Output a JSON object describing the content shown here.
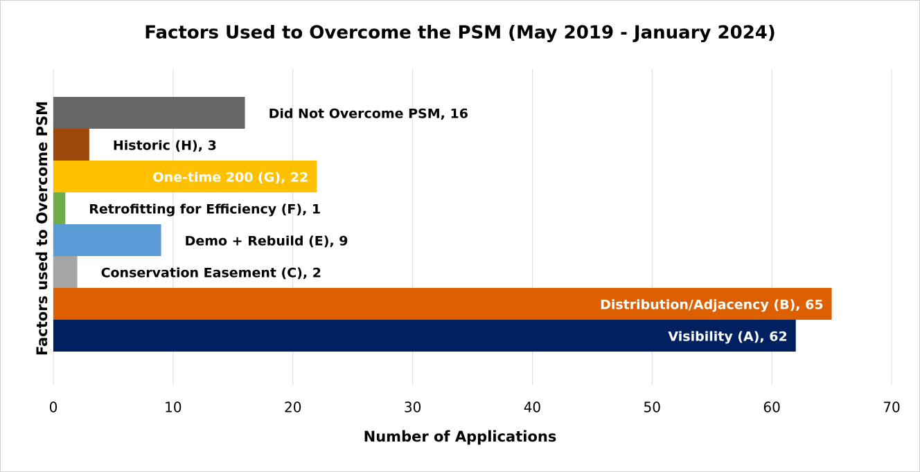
{
  "chart_data": {
    "type": "bar",
    "orientation": "horizontal",
    "title": "Factors Used to Overcome the PSM (May 2019 - January 2024)",
    "xlabel": "Number of Applications",
    "ylabel": "Factors used to Overcome PSM",
    "values": [
      62,
      65,
      2,
      9,
      1,
      22,
      3,
      16
    ],
    "value_labels": [
      "Visibility (A), 62",
      "Distribution/Adjacency (B), 65",
      "Conservation Easement (C), 2",
      "Demo + Rebuild (E), 9",
      "Retrofitting for Efficiency (F), 1",
      "One-time 200 (G), 22",
      "Historic (H), 3",
      "Did Not Overcome PSM, 16"
    ],
    "colors": [
      "#002060",
      "#dd5f00",
      "#a5a5a5",
      "#5b9bd5",
      "#70ad47",
      "#ffc000",
      "#9e480e",
      "#666666"
    ],
    "xlim": [
      0,
      70
    ],
    "xticks": [
      0,
      10,
      20,
      30,
      40,
      50,
      60,
      70
    ],
    "grid": true
  }
}
